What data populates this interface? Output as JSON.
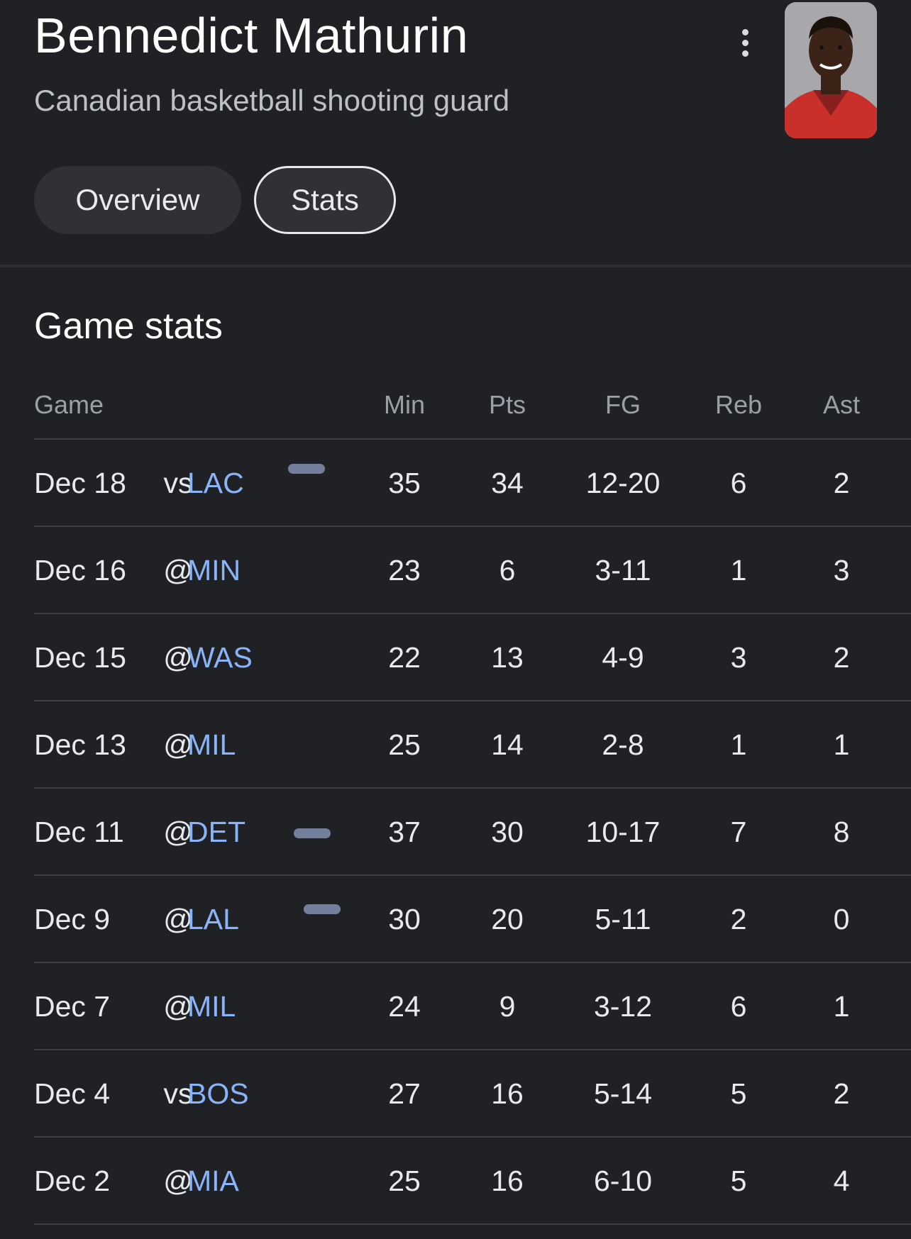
{
  "header": {
    "name": "Bennedict Mathurin",
    "description": "Canadian basketball shooting guard",
    "menu_icon": "more-vert-icon"
  },
  "tabs": [
    {
      "label": "Overview",
      "selected": false
    },
    {
      "label": "Stats",
      "selected": true
    }
  ],
  "section_title": "Game stats",
  "columns": {
    "game": "Game",
    "min": "Min",
    "pts": "Pts",
    "fg": "FG",
    "reb": "Reb",
    "ast": "Ast"
  },
  "rows": [
    {
      "date": "Dec 18",
      "loc": "vs",
      "opp": "LAC",
      "min": "35",
      "pts": "34",
      "fg": "12-20",
      "reb": "6",
      "ast": "2",
      "mark": true
    },
    {
      "date": "Dec 16",
      "loc": "@",
      "opp": "MIN",
      "min": "23",
      "pts": "6",
      "fg": "3-11",
      "reb": "1",
      "ast": "3",
      "mark": false
    },
    {
      "date": "Dec 15",
      "loc": "@",
      "opp": "WAS",
      "min": "22",
      "pts": "13",
      "fg": "4-9",
      "reb": "3",
      "ast": "2",
      "mark": false
    },
    {
      "date": "Dec 13",
      "loc": "@",
      "opp": "MIL",
      "min": "25",
      "pts": "14",
      "fg": "2-8",
      "reb": "1",
      "ast": "1",
      "mark": false
    },
    {
      "date": "Dec 11",
      "loc": "@",
      "opp": "DET",
      "min": "37",
      "pts": "30",
      "fg": "10-17",
      "reb": "7",
      "ast": "8",
      "mark": true
    },
    {
      "date": "Dec 9",
      "loc": "@",
      "opp": "LAL",
      "min": "30",
      "pts": "20",
      "fg": "5-11",
      "reb": "2",
      "ast": "0",
      "mark": true
    },
    {
      "date": "Dec 7",
      "loc": "@",
      "opp": "MIL",
      "min": "24",
      "pts": "9",
      "fg": "3-12",
      "reb": "6",
      "ast": "1",
      "mark": false
    },
    {
      "date": "Dec 4",
      "loc": "vs",
      "opp": "BOS",
      "min": "27",
      "pts": "16",
      "fg": "5-14",
      "reb": "5",
      "ast": "2",
      "mark": false
    },
    {
      "date": "Dec 2",
      "loc": "@",
      "opp": "MIA",
      "min": "25",
      "pts": "16",
      "fg": "6-10",
      "reb": "5",
      "ast": "4",
      "mark": false
    }
  ]
}
